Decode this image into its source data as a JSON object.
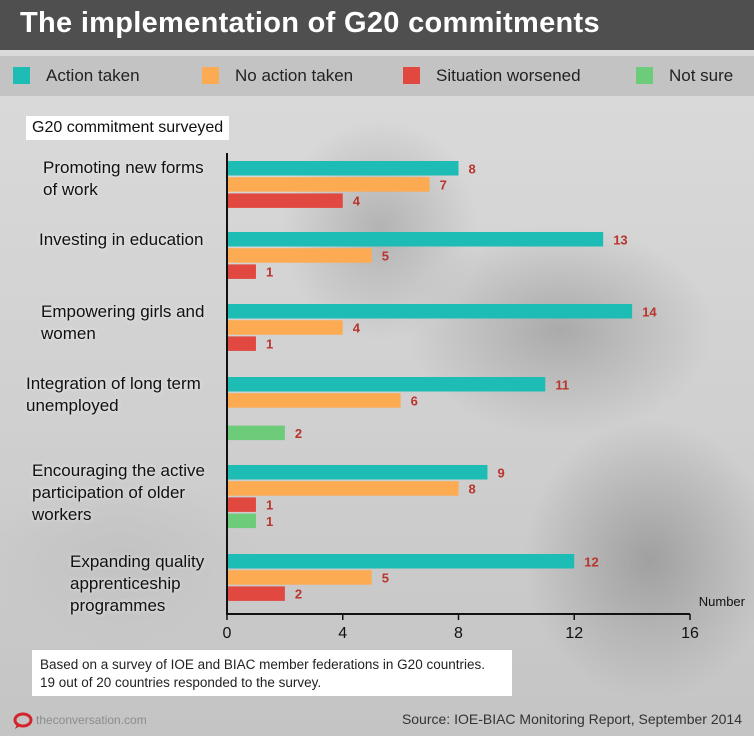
{
  "title": "The implementation of G20 commitments",
  "legend": [
    {
      "label": "Action taken",
      "color": "#1dbcb4"
    },
    {
      "label": "No action taken",
      "color": "#fcab52"
    },
    {
      "label": "Situation worsened",
      "color": "#e04840"
    },
    {
      "label": "Not sure",
      "color": "#6dcc7a"
    }
  ],
  "subtitle": "G20 commitment surveyed",
  "note": {
    "line1": "Based on a survey of IOE and BIAC member federations in G20 countries.",
    "line2": "19 out of 20 countries responded to the survey."
  },
  "footer": {
    "site": "theconversation.com",
    "source": "Source: IOE-BIAC Monitoring Report, September 2014",
    "logo_icon": "conversation-logo-icon"
  },
  "chart_data": {
    "type": "bar",
    "orientation": "horizontal",
    "categories": [
      "Promoting new forms\nof work",
      "Investing in education",
      "Empowering girls and\nwomen",
      "Integration of long term\nunemployed",
      "Encouraging the active\nparticipation of older\nworkers",
      "Expanding quality\napprenticeship\nprogrammes"
    ],
    "series": [
      {
        "name": "Action taken",
        "color": "#1dbcb4",
        "values": [
          8,
          13,
          14,
          11,
          9,
          12
        ]
      },
      {
        "name": "No action taken",
        "color": "#fcab52",
        "values": [
          7,
          5,
          4,
          6,
          8,
          5
        ]
      },
      {
        "name": "Situation worsened",
        "color": "#e04840",
        "values": [
          4,
          1,
          1,
          null,
          1,
          2
        ]
      },
      {
        "name": "Not sure",
        "color": "#6dcc7a",
        "values": [
          null,
          null,
          null,
          2,
          1,
          null
        ]
      }
    ],
    "xlabel": "Number",
    "ylabel": "G20 commitment surveyed",
    "xlim": [
      0,
      16
    ],
    "xticks": [
      0,
      4,
      8,
      12,
      16
    ],
    "grid": false,
    "legend_position": "top",
    "value_label_color": "#b9342c"
  }
}
